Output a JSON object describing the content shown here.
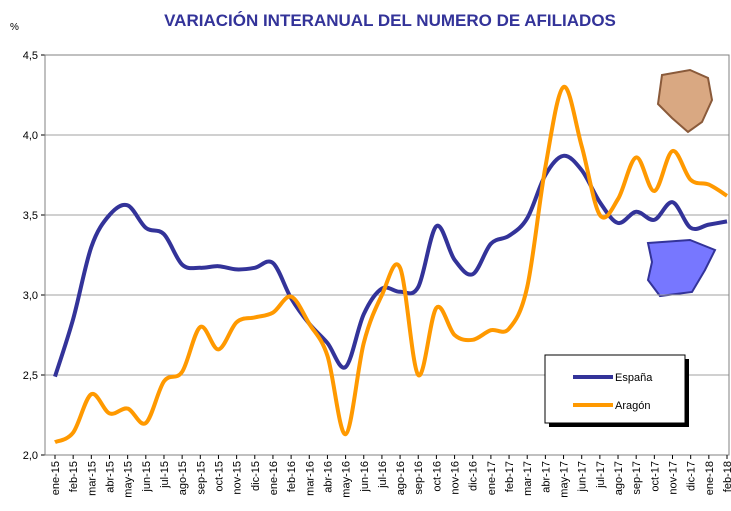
{
  "chart_data": {
    "type": "line",
    "title": "VARIACIÓN INTERANUAL DEL NUMERO DE AFILIADOS",
    "y_label": "%",
    "categories": [
      "ene-15",
      "feb-15",
      "mar-15",
      "abr-15",
      "may-15",
      "jun-15",
      "jul-15",
      "ago-15",
      "sep-15",
      "oct-15",
      "nov-15",
      "dic-15",
      "ene-16",
      "feb-16",
      "mar-16",
      "abr-16",
      "may-16",
      "jun-16",
      "jul-16",
      "ago-16",
      "sep-16",
      "oct-16",
      "nov-16",
      "dic-16",
      "ene-17",
      "feb-17",
      "mar-17",
      "abr-17",
      "may-17",
      "jun-17",
      "jul-17",
      "ago-17",
      "sep-17",
      "oct-17",
      "nov-17",
      "dic-17",
      "ene-18",
      "feb-18"
    ],
    "series": [
      {
        "name": "España",
        "color": "#333399",
        "values": [
          2.49,
          2.85,
          3.3,
          3.5,
          3.56,
          3.42,
          3.38,
          3.19,
          3.17,
          3.18,
          3.16,
          3.17,
          3.2,
          2.98,
          2.82,
          2.7,
          2.55,
          2.88,
          3.04,
          3.02,
          3.05,
          3.43,
          3.22,
          3.13,
          3.32,
          3.37,
          3.48,
          3.75,
          3.87,
          3.78,
          3.58,
          3.45,
          3.52,
          3.47,
          3.58,
          3.42,
          3.44,
          3.46
        ]
      },
      {
        "name": "Aragón",
        "color": "#ff9900",
        "values": [
          2.08,
          2.14,
          2.38,
          2.26,
          2.29,
          2.2,
          2.46,
          2.52,
          2.8,
          2.66,
          2.83,
          2.86,
          2.89,
          2.99,
          2.82,
          2.62,
          2.13,
          2.7,
          3.0,
          3.17,
          2.5,
          2.92,
          2.75,
          2.72,
          2.78,
          2.79,
          3.05,
          3.8,
          4.3,
          3.93,
          3.5,
          3.6,
          3.86,
          3.65,
          3.9,
          3.72,
          3.69,
          3.62
        ]
      }
    ],
    "ylim": [
      2.0,
      4.5
    ],
    "yticks": [
      {
        "value": 2.0,
        "label": "2,0"
      },
      {
        "value": 2.5,
        "label": "2,5"
      },
      {
        "value": 3.0,
        "label": "3,0"
      },
      {
        "value": 3.5,
        "label": "3,5"
      },
      {
        "value": 4.0,
        "label": "4,0"
      },
      {
        "value": 4.5,
        "label": "4,5"
      }
    ],
    "grid": true,
    "legend": "lower right"
  }
}
